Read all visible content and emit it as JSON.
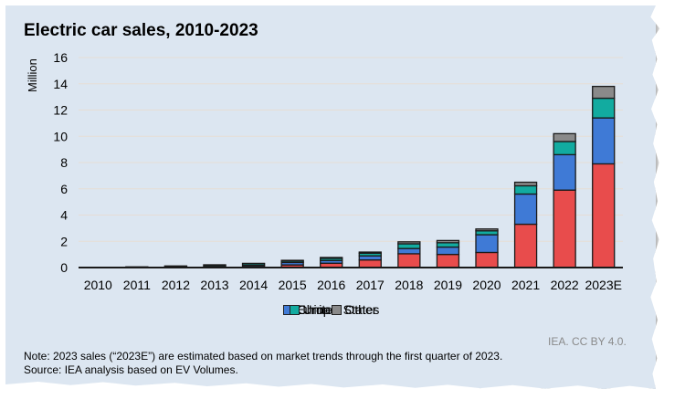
{
  "chart_data": {
    "type": "bar",
    "stacked": true,
    "title": "Electric car sales, 2010-2023",
    "xlabel": "",
    "ylabel": "Million",
    "ylim": [
      0,
      16
    ],
    "yticks": [
      0,
      2,
      4,
      6,
      8,
      10,
      12,
      14,
      16
    ],
    "grid": true,
    "legend_position": "bottom",
    "categories": [
      "2010",
      "2011",
      "2012",
      "2013",
      "2014",
      "2015",
      "2016",
      "2017",
      "2018",
      "2019",
      "2020",
      "2021",
      "2022",
      "2023E"
    ],
    "series": [
      {
        "name": "China",
        "color": "#e84c4c",
        "values": [
          0.0,
          0.01,
          0.02,
          0.03,
          0.07,
          0.2,
          0.33,
          0.58,
          1.05,
          1.0,
          1.15,
          3.3,
          5.9,
          7.9
        ]
      },
      {
        "name": "Europe",
        "color": "#3f7ad6",
        "values": [
          0.0,
          0.01,
          0.03,
          0.06,
          0.1,
          0.19,
          0.21,
          0.31,
          0.4,
          0.56,
          1.35,
          2.3,
          2.7,
          3.5
        ]
      },
      {
        "name": "United States",
        "color": "#12aba0",
        "values": [
          0.0,
          0.02,
          0.05,
          0.1,
          0.12,
          0.11,
          0.16,
          0.2,
          0.36,
          0.33,
          0.3,
          0.63,
          1.0,
          1.5
        ]
      },
      {
        "name": "Other",
        "color": "#8a8a8a",
        "values": [
          0.0,
          0.01,
          0.02,
          0.02,
          0.03,
          0.05,
          0.07,
          0.09,
          0.15,
          0.17,
          0.14,
          0.27,
          0.6,
          0.9
        ]
      }
    ]
  },
  "texts": {
    "title": "Electric car sales, 2010-2023",
    "ylabel": "Million",
    "credit": "IEA. CC BY 4.0.",
    "note": "Note: 2023 sales (“2023E”) are estimated based on market trends through the first quarter of 2023.",
    "source": "Source: IEA analysis based on EV Volumes."
  },
  "legend": [
    {
      "label": "China",
      "color": "#e84c4c"
    },
    {
      "label": "Europe",
      "color": "#3f7ad6"
    },
    {
      "label": "United States",
      "color": "#12aba0"
    },
    {
      "label": "Other",
      "color": "#8a8a8a"
    }
  ]
}
